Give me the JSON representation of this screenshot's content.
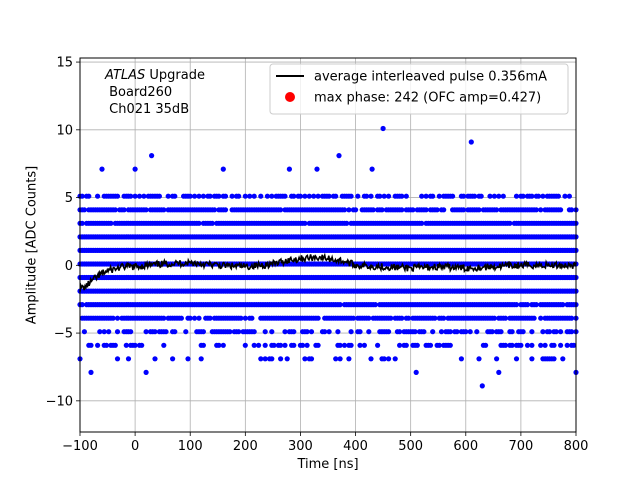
{
  "chart_data": {
    "type": "scatter",
    "title": "",
    "xlabel": "Time [ns]",
    "ylabel": "Amplitude [ADC Counts]",
    "xlim": [
      -100,
      800
    ],
    "ylim": [
      -12.3,
      15.3
    ],
    "xticks": [
      -100,
      0,
      100,
      200,
      300,
      400,
      500,
      600,
      700,
      800
    ],
    "yticks": [
      -10,
      -5,
      0,
      5,
      10,
      15
    ],
    "grid": true,
    "legend_position": "top-right",
    "annotation": {
      "italic": "ATLAS",
      "line1_rest": " Upgrade",
      "line2": " Board260",
      "line3": " Ch021 35dB"
    },
    "legend": [
      {
        "label": "average interleaved pulse 0.356mA",
        "kind": "line",
        "color": "#000000"
      },
      {
        "label": "max phase: 242 (OFC amp=0.427)",
        "kind": "marker",
        "color": "#ff0000"
      }
    ],
    "colors": {
      "samples": "#0000ff",
      "average": "#000000",
      "grid": "#b0b0b0"
    },
    "samples": {
      "name": "",
      "levels": [
        -7,
        -6,
        -5,
        -4,
        -3,
        -2,
        -1,
        0,
        1,
        2,
        3,
        4,
        5
      ],
      "x_step": 4,
      "x_start": -100,
      "x_end": 800,
      "outliers": [
        {
          "x": 450,
          "y": 10.1
        },
        {
          "x": 610,
          "y": 9.1
        },
        {
          "x": 30,
          "y": 8.1
        },
        {
          "x": 370,
          "y": 8.1
        },
        {
          "x": 630,
          "y": -8.9
        },
        {
          "x": -60,
          "y": 7.1
        },
        {
          "x": 0,
          "y": 7.1
        },
        {
          "x": 160,
          "y": 7.1
        },
        {
          "x": 280,
          "y": 7.1
        },
        {
          "x": 330,
          "y": 7.1
        },
        {
          "x": 430,
          "y": 7.1
        },
        {
          "x": -80,
          "y": -7.9
        },
        {
          "x": 20,
          "y": -7.9
        },
        {
          "x": 510,
          "y": -7.9
        },
        {
          "x": 660,
          "y": -7.9
        },
        {
          "x": 800,
          "y": -7.9
        }
      ]
    },
    "average_pulse": {
      "name": "average interleaved pulse 0.356mA",
      "points": [
        [
          -100,
          -1.7
        ],
        [
          -90,
          -1.6
        ],
        [
          -80,
          -1.2
        ],
        [
          -70,
          -0.9
        ],
        [
          -60,
          -0.6
        ],
        [
          -50,
          -0.4
        ],
        [
          -40,
          -0.3
        ],
        [
          -30,
          -0.2
        ],
        [
          -20,
          -0.1
        ],
        [
          0,
          -0.1
        ],
        [
          50,
          0.1
        ],
        [
          100,
          0.2
        ],
        [
          150,
          0.0
        ],
        [
          200,
          -0.1
        ],
        [
          250,
          0.1
        ],
        [
          280,
          0.4
        ],
        [
          300,
          0.5
        ],
        [
          330,
          0.6
        ],
        [
          350,
          0.5
        ],
        [
          380,
          0.3
        ],
        [
          400,
          0.0
        ],
        [
          450,
          -0.1
        ],
        [
          500,
          -0.2
        ],
        [
          550,
          -0.1
        ],
        [
          600,
          -0.2
        ],
        [
          650,
          -0.1
        ],
        [
          700,
          0.0
        ],
        [
          750,
          0.0
        ],
        [
          800,
          0.0
        ]
      ]
    }
  }
}
